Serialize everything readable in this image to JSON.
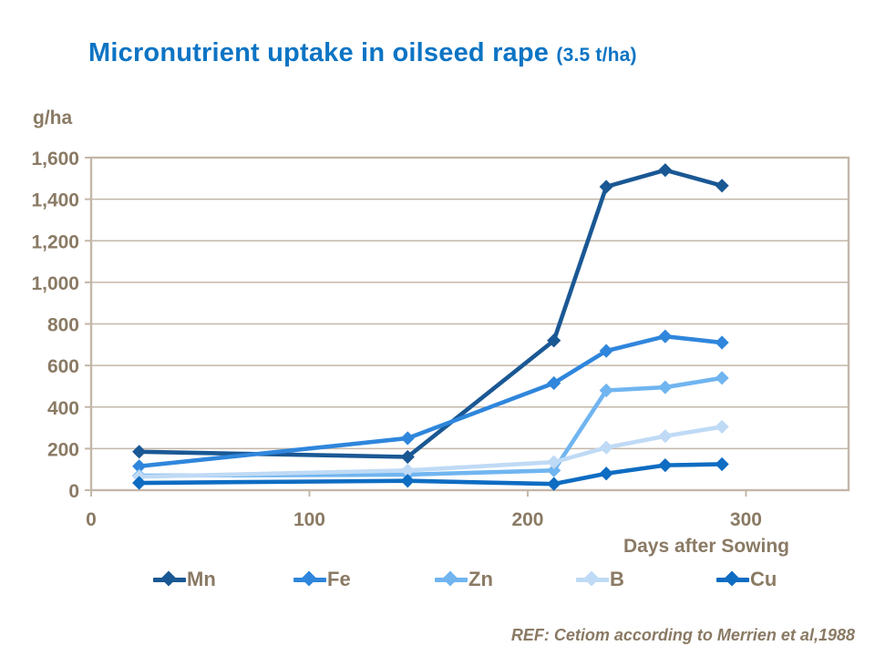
{
  "title": {
    "main": "Micronutrient uptake in oilseed rape",
    "suffix": "(3.5 t/ha)"
  },
  "footer": "REF: Cetiom according to Merrien et al,1988",
  "colors": {
    "title_blue": "#0C74C4",
    "axis_text_brown": "#8A7A64",
    "grid": "#C3B7A9"
  },
  "chart_data": {
    "type": "line",
    "marker": "diamond",
    "title": "Micronutrient uptake in oilseed rape (3.5 t/ha)",
    "xlabel": "Days after Sowing",
    "ylabel": "g/ha",
    "xlim": [
      0,
      347
    ],
    "ylim": [
      0,
      1600
    ],
    "grid": "horizontal",
    "legend_position": "bottom",
    "x_ticks": [
      0,
      100,
      200,
      300
    ],
    "y_ticks": [
      0,
      200,
      400,
      600,
      800,
      1000,
      1200,
      1400,
      1600
    ],
    "y_tick_labels": [
      "0",
      "200",
      "400",
      "600",
      "800",
      "1,000",
      "1,200",
      "1,400",
      "1,600"
    ],
    "x": [
      22,
      145,
      212,
      236,
      263,
      289
    ],
    "series": [
      {
        "name": "Mn",
        "color": "#1A5894",
        "values": [
          185,
          160,
          720,
          1460,
          1540,
          1465
        ]
      },
      {
        "name": "Fe",
        "color": "#2F86DC",
        "values": [
          115,
          250,
          515,
          670,
          740,
          710
        ]
      },
      {
        "name": "Zn",
        "color": "#70B5F0",
        "values": [
          70,
          75,
          95,
          480,
          495,
          540
        ]
      },
      {
        "name": "B",
        "color": "#BFDAF5",
        "values": [
          65,
          95,
          135,
          205,
          260,
          305
        ]
      },
      {
        "name": "Cu",
        "color": "#0E6CC2",
        "values": [
          35,
          45,
          30,
          80,
          120,
          125
        ]
      }
    ]
  }
}
